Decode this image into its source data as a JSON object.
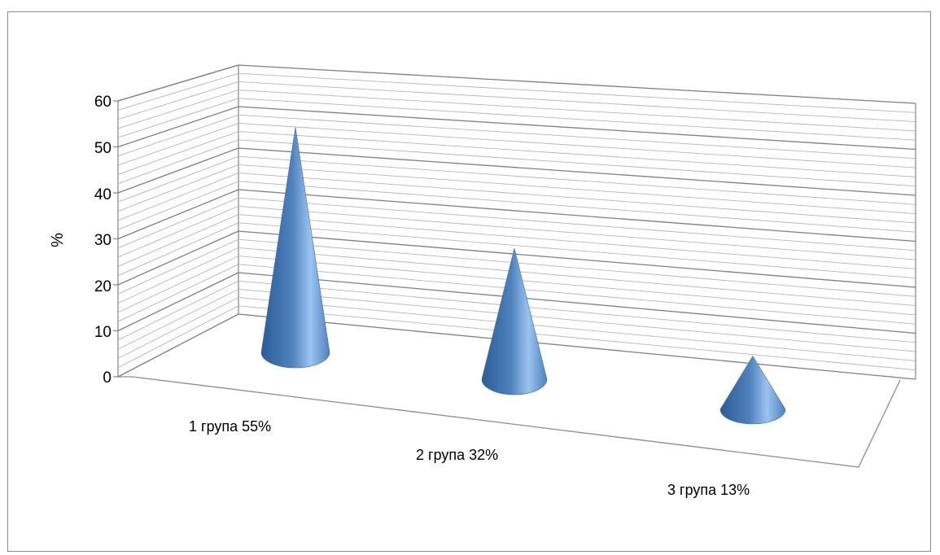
{
  "chart_data": {
    "type": "bar",
    "style": "3d-cone",
    "categories": [
      "1 група 55%",
      "2 група 32%",
      "3 група 13%"
    ],
    "values": [
      55,
      32,
      13
    ],
    "ylabel": "%",
    "xlabel": "",
    "title": "",
    "ylim": [
      0,
      60
    ],
    "yticks": [
      "0",
      "10",
      "20",
      "30",
      "40",
      "50",
      "60"
    ],
    "grid": true,
    "legend": "none",
    "colors": {
      "cone": "#4f81bd",
      "cone_light": "#9cc3f0",
      "cone_dark": "#2c5d99",
      "grid": "#8c8c8c"
    }
  }
}
